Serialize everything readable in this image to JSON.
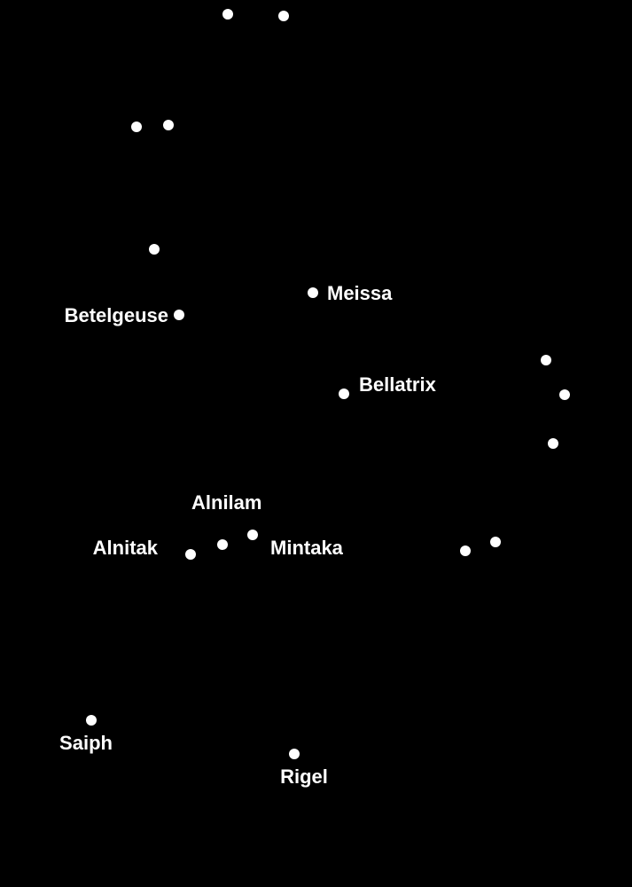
{
  "background_color": "#000000",
  "star_color": "#ffffff",
  "labels": {
    "betelgeuse": "Betelgeuse",
    "meissa": "Meissa",
    "bellatrix": "Bellatrix",
    "alnilam": "Alnilam",
    "alnitak": "Alnitak",
    "mintaka": "Mintaka",
    "saiph": "Saiph",
    "rigel": "Rigel"
  }
}
